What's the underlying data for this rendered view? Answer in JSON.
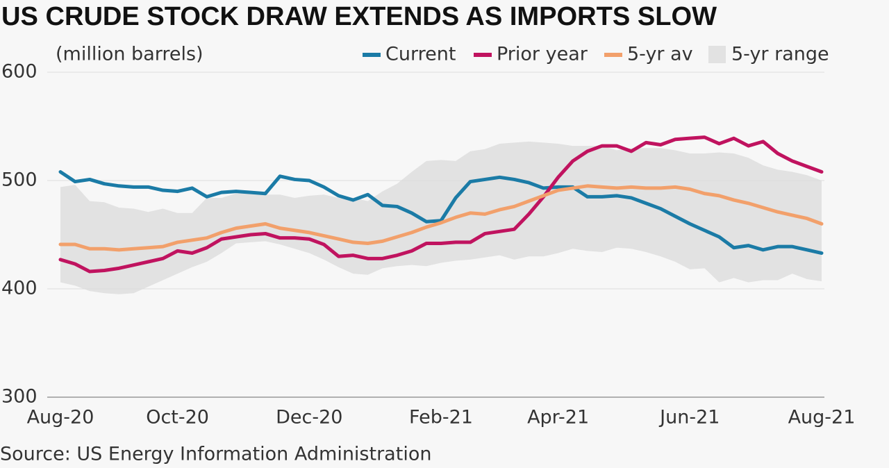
{
  "chart_data": {
    "type": "line",
    "title": "US CRUDE STOCK DRAW EXTENDS AS IMPORTS SLOW",
    "y_label": "(million barrels)",
    "source": "Source: US Energy Information Administration",
    "categories": [
      "Aug-20",
      null,
      null,
      null,
      null,
      null,
      null,
      null,
      "Oct-20",
      null,
      null,
      null,
      null,
      null,
      null,
      null,
      null,
      "Dec-20",
      null,
      null,
      null,
      null,
      null,
      null,
      null,
      null,
      "Feb-21",
      null,
      null,
      null,
      null,
      null,
      null,
      null,
      "Apr-21",
      null,
      null,
      null,
      null,
      null,
      null,
      null,
      null,
      "Jun-21",
      null,
      null,
      null,
      null,
      null,
      null,
      null,
      null,
      "Aug-21"
    ],
    "ylim": [
      300,
      600
    ],
    "yticks": [
      300,
      400,
      500,
      600
    ],
    "grid": true,
    "series": [
      {
        "name": "Current",
        "color": "#1b7ba6",
        "values": [
          508,
          499,
          501,
          497,
          495,
          494,
          494,
          491,
          490,
          493,
          485,
          489,
          490,
          489,
          488,
          504,
          501,
          500,
          494,
          486,
          482,
          487,
          477,
          476,
          470,
          462,
          463,
          484,
          499,
          501,
          503,
          501,
          498,
          493,
          494,
          494,
          485,
          485,
          486,
          484,
          479,
          474,
          467,
          460,
          454,
          448,
          438,
          440,
          436,
          439,
          439,
          436,
          433
        ]
      },
      {
        "name": "Prior year",
        "color": "#c0135f",
        "values": [
          427,
          423,
          416,
          417,
          419,
          422,
          425,
          428,
          435,
          433,
          438,
          446,
          448,
          450,
          451,
          447,
          447,
          446,
          441,
          430,
          431,
          428,
          428,
          431,
          435,
          442,
          442,
          443,
          443,
          451,
          453,
          455,
          469,
          485,
          503,
          518,
          527,
          532,
          532,
          527,
          535,
          533,
          538,
          539,
          540,
          534,
          539,
          532,
          536,
          525,
          518,
          513,
          508
        ]
      },
      {
        "name": "5-yr av",
        "color": "#f2a06b",
        "values": [
          441,
          441,
          437,
          437,
          436,
          437,
          438,
          439,
          443,
          445,
          447,
          452,
          456,
          458,
          460,
          456,
          454,
          452,
          449,
          446,
          443,
          442,
          444,
          448,
          452,
          457,
          461,
          466,
          470,
          469,
          473,
          476,
          481,
          486,
          491,
          493,
          495,
          494,
          493,
          494,
          493,
          493,
          494,
          492,
          488,
          486,
          482,
          479,
          475,
          471,
          468,
          465,
          460
        ]
      },
      {
        "name": "5-yr range",
        "color": "#e2e2e2",
        "upper": [
          494,
          496,
          481,
          480,
          475,
          474,
          471,
          474,
          470,
          470,
          484,
          484,
          488,
          488,
          487,
          487,
          484,
          486,
          487,
          484,
          484,
          481,
          490,
          497,
          508,
          518,
          519,
          518,
          527,
          529,
          534,
          535,
          536,
          535,
          534,
          532,
          532,
          532,
          528,
          530,
          530,
          530,
          528,
          525,
          525,
          526,
          525,
          521,
          514,
          510,
          508,
          505,
          500
        ],
        "lower": [
          406,
          403,
          398,
          396,
          395,
          396,
          402,
          408,
          414,
          420,
          425,
          433,
          442,
          443,
          444,
          441,
          437,
          433,
          427,
          420,
          414,
          413,
          419,
          421,
          422,
          421,
          424,
          426,
          427,
          429,
          431,
          427,
          430,
          430,
          433,
          437,
          435,
          434,
          438,
          437,
          434,
          430,
          425,
          418,
          419,
          406,
          410,
          406,
          408,
          408,
          414,
          409,
          407
        ]
      }
    ]
  }
}
